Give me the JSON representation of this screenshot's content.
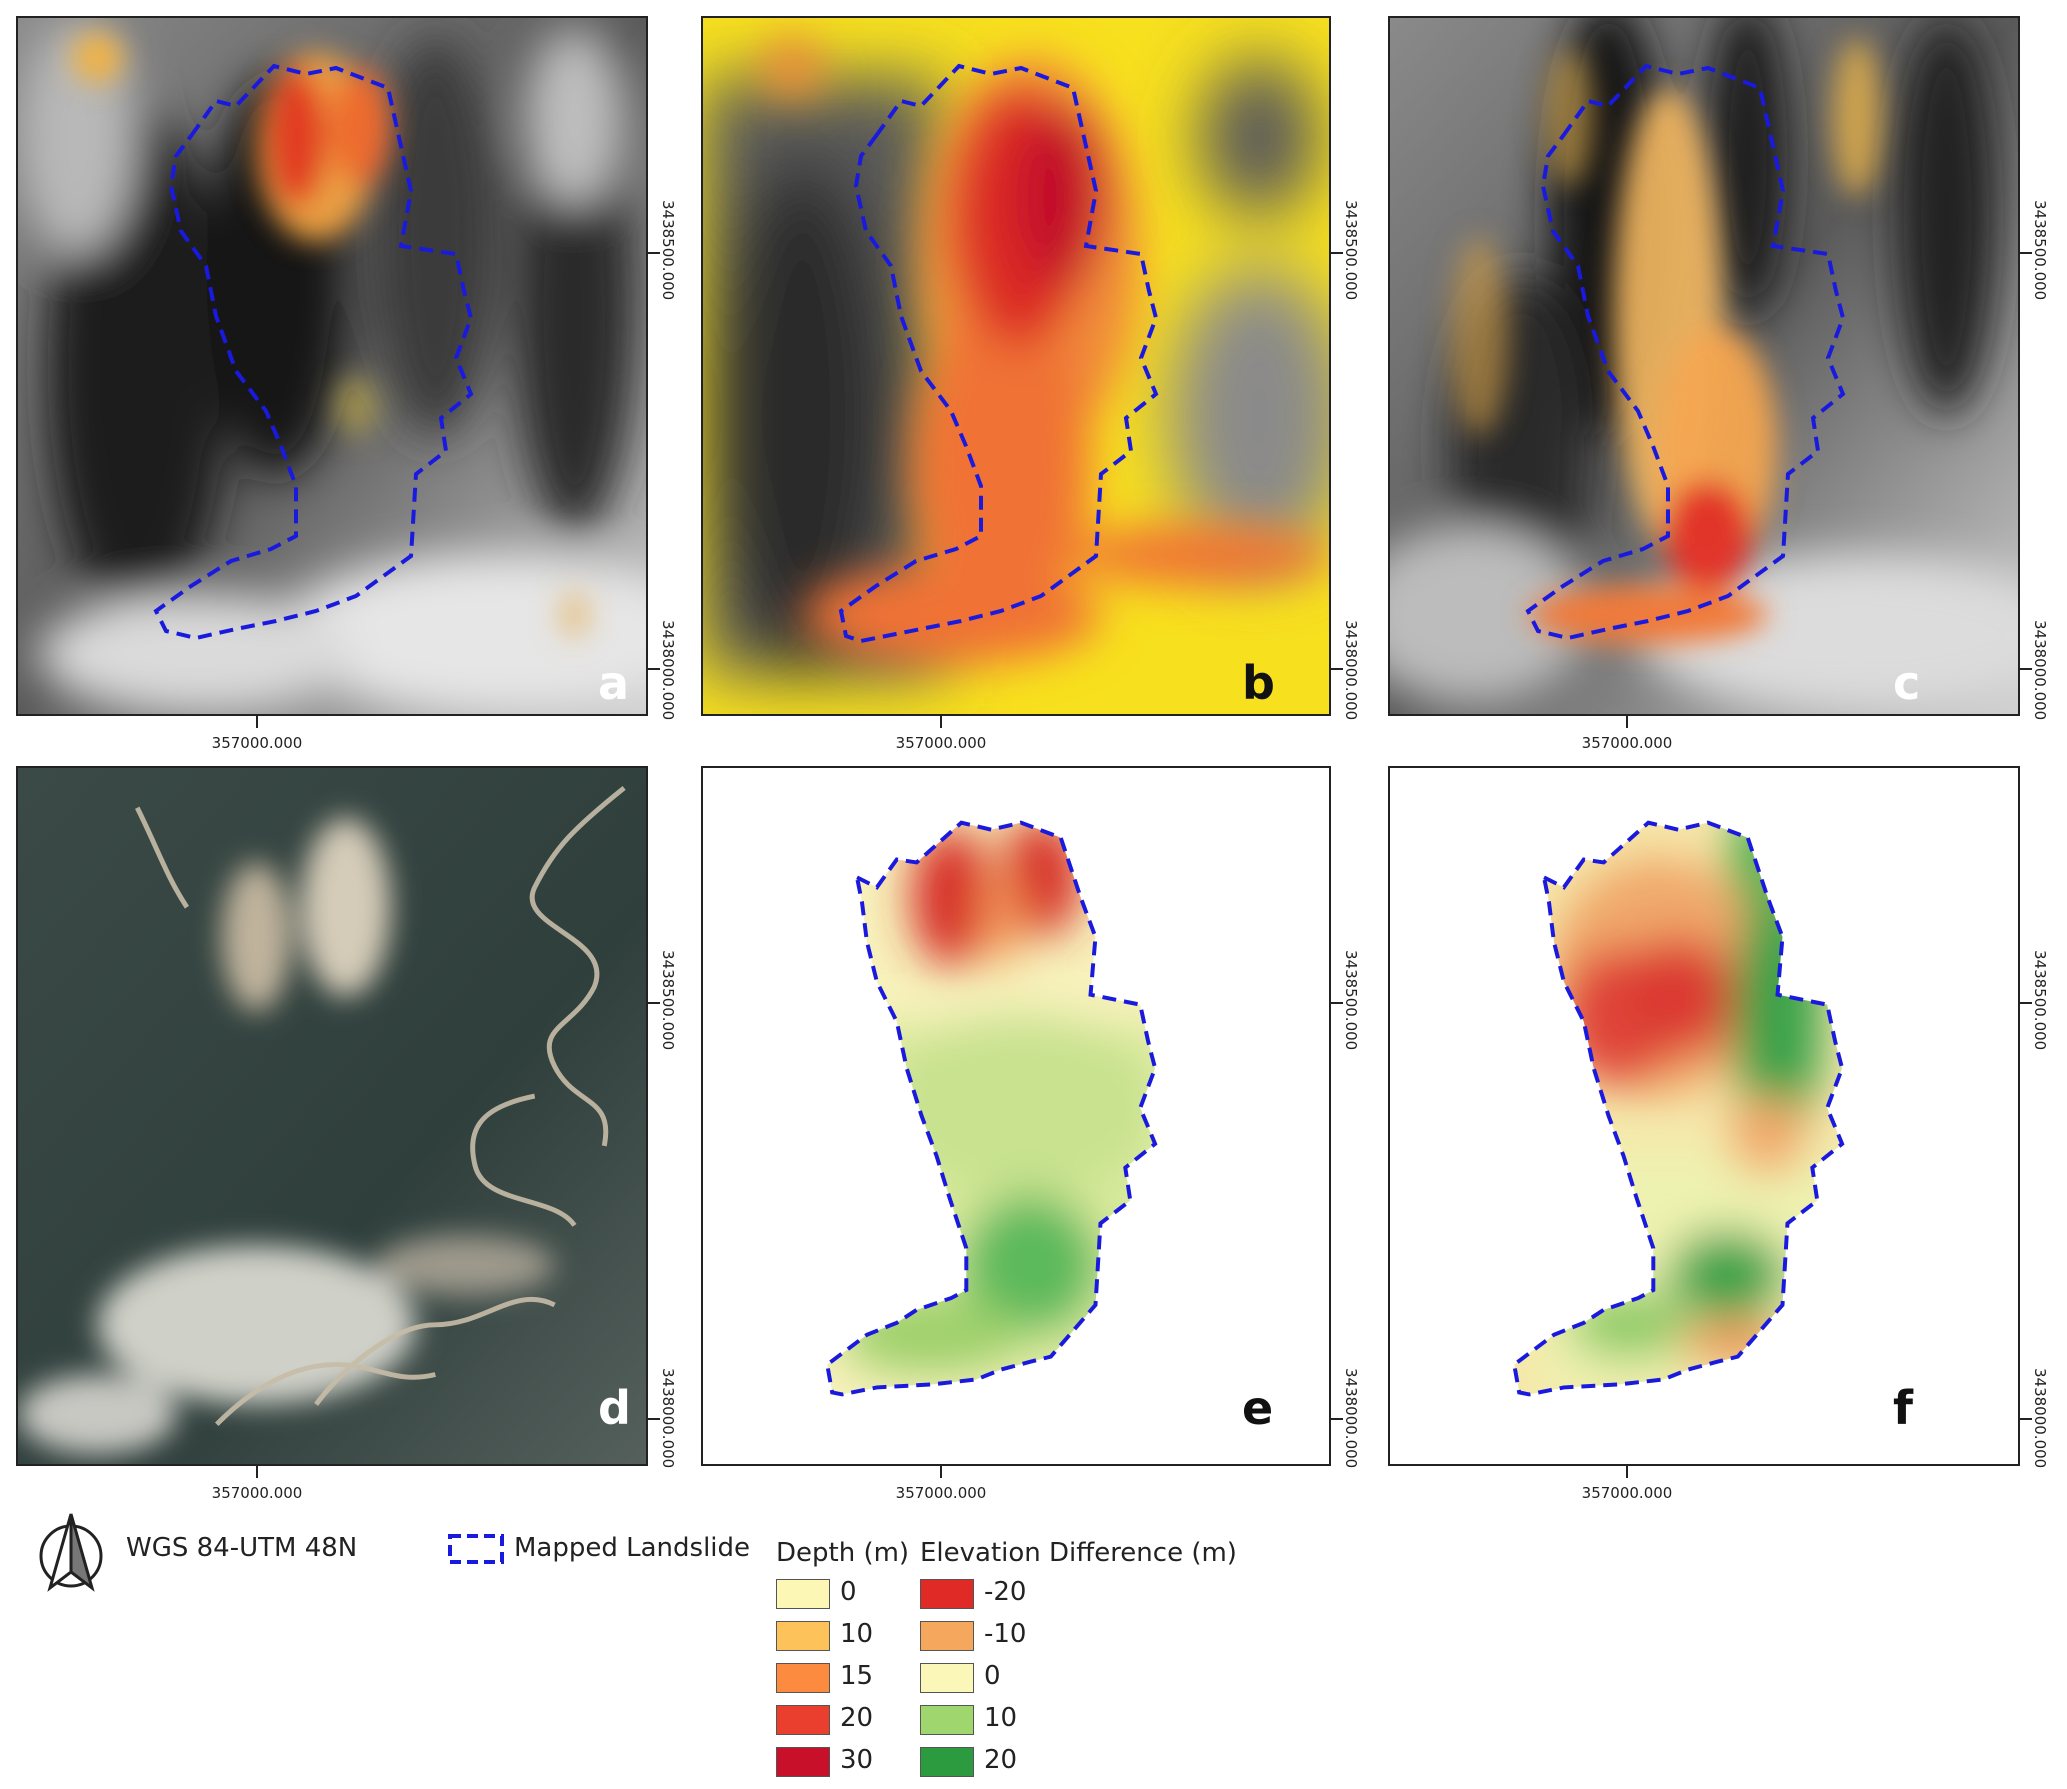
{
  "panels": [
    {
      "id": "a",
      "label": "a",
      "x_tick": "357000.000",
      "y_ticks": [
        "3438500.000",
        "3438000.000"
      ]
    },
    {
      "id": "b",
      "label": "b",
      "x_tick": "357000.000",
      "y_ticks": [
        "3438500.000",
        "3438000.000"
      ]
    },
    {
      "id": "c",
      "label": "c",
      "x_tick": "357000.000",
      "y_ticks": [
        "3438500.000",
        "3438000.000"
      ]
    },
    {
      "id": "d",
      "label": "d",
      "x_tick": "357000.000",
      "y_ticks": [
        "3438500.000",
        "3438000.000"
      ]
    },
    {
      "id": "e",
      "label": "e",
      "x_tick": "357000.000",
      "y_ticks": [
        "3438500.000",
        "3438000.000"
      ]
    },
    {
      "id": "f",
      "label": "f",
      "x_tick": "357000.000",
      "y_ticks": [
        "3438500.000",
        "3438000.000"
      ]
    }
  ],
  "legend": {
    "crs": "WGS 84-UTM 48N",
    "outline_label": "Mapped Landslide",
    "outline_color": "#1a1adf",
    "depth": {
      "title": "Depth (m)",
      "items": [
        {
          "label": "0",
          "color": "#fdf7b6"
        },
        {
          "label": "10",
          "color": "#fdc25a"
        },
        {
          "label": "15",
          "color": "#fc8b3f"
        },
        {
          "label": "20",
          "color": "#ea3f2e"
        },
        {
          "label": "30",
          "color": "#c8102a"
        }
      ]
    },
    "elevation": {
      "title": "Elevation Difference (m)",
      "items": [
        {
          "label": "-20",
          "color": "#df2a26"
        },
        {
          "label": "-10",
          "color": "#f5a75e"
        },
        {
          "label": "0",
          "color": "#fbf7b8"
        },
        {
          "label": "10",
          "color": "#9fd66d"
        },
        {
          "label": "20",
          "color": "#2c9b3f"
        }
      ]
    }
  }
}
